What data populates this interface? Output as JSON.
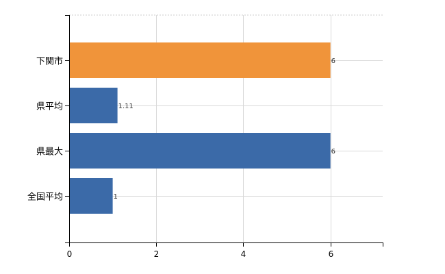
{
  "chart_data": {
    "type": "bar",
    "orientation": "horizontal",
    "categories": [
      "下関市",
      "県平均",
      "県最大",
      "全国平均"
    ],
    "values": [
      6,
      1.11,
      6,
      1
    ],
    "data_labels": [
      "6",
      "1.11",
      "6",
      "1"
    ],
    "bar_colors": [
      "#f0943a",
      "#3b6aa8",
      "#3b6aa8",
      "#3b6aa8"
    ],
    "highlight_color": "#f0943a",
    "base_color": "#3b6aa8",
    "xlim": [
      0,
      7.2
    ],
    "x_ticks": [
      0,
      2,
      4,
      6
    ],
    "x_tick_labels": [
      "0",
      "2",
      "4",
      "6"
    ],
    "grid": true,
    "legend": "none",
    "title": "",
    "xlabel": "",
    "ylabel": ""
  }
}
